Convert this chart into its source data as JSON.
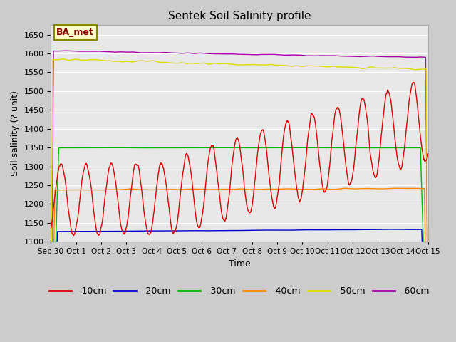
{
  "title": "Sentek Soil Salinity profile",
  "xlabel": "Time",
  "ylabel": "Soil salinity (? unit)",
  "ylim": [
    1100,
    1675
  ],
  "yticks": [
    1100,
    1150,
    1200,
    1250,
    1300,
    1350,
    1400,
    1450,
    1500,
    1550,
    1600,
    1650
  ],
  "legend_label": "BA_met",
  "line_colors": {
    "-10cm": "#dd0000",
    "-20cm": "#0000cc",
    "-30cm": "#00bb00",
    "-40cm": "#ff8800",
    "-50cm": "#dddd00",
    "-60cm": "#aa00aa"
  },
  "n_days": 15,
  "fig_width": 6.4,
  "fig_height": 4.8,
  "dpi": 100
}
